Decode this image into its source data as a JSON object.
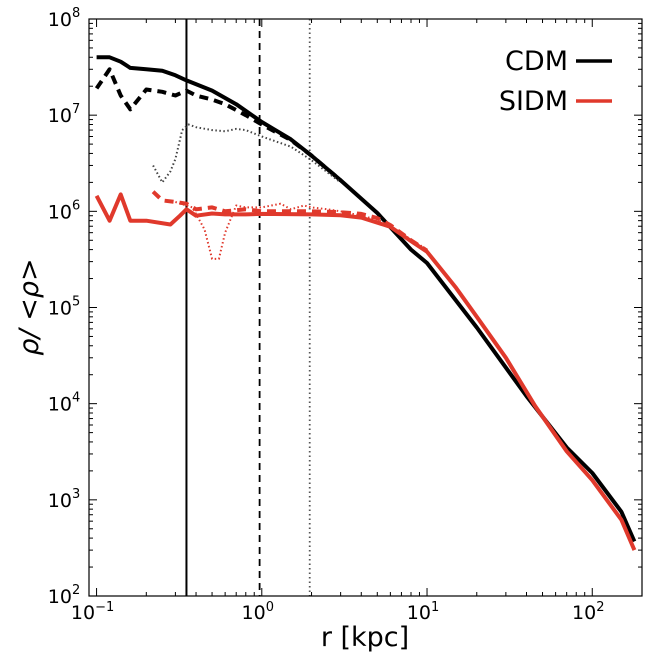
{
  "chart_data": {
    "type": "line",
    "xlabel": "r [kpc]",
    "ylabel": "ρ/ <ρ>",
    "xscale": "log",
    "yscale": "log",
    "xlim": [
      0.09,
      200
    ],
    "ylim": [
      100,
      100000000
    ],
    "x_ticks": [
      {
        "base": "10",
        "exp": "−1",
        "value": 0.1
      },
      {
        "base": "10",
        "exp": "0",
        "value": 1
      },
      {
        "base": "10",
        "exp": "1",
        "value": 10
      },
      {
        "base": "10",
        "exp": "2",
        "value": 100
      }
    ],
    "y_ticks": [
      {
        "base": "10",
        "exp": "2",
        "value": 100
      },
      {
        "base": "10",
        "exp": "3",
        "value": 1000
      },
      {
        "base": "10",
        "exp": "4",
        "value": 10000
      },
      {
        "base": "10",
        "exp": "5",
        "value": 100000
      },
      {
        "base": "10",
        "exp": "6",
        "value": 1000000
      },
      {
        "base": "10",
        "exp": "7",
        "value": 10000000
      },
      {
        "base": "10",
        "exp": "8",
        "value": 100000000
      }
    ],
    "legend": [
      {
        "label": "CDM",
        "color": "#000000"
      },
      {
        "label": "SIDM",
        "color": "#e0392c"
      }
    ],
    "legend_position": "top-right",
    "vertical_lines": [
      {
        "x": 0.35,
        "style": "solid",
        "color": "#000000"
      },
      {
        "x": 0.97,
        "style": "dashed",
        "color": "#000000"
      },
      {
        "x": 1.95,
        "style": "dotted",
        "color": "#555555"
      }
    ],
    "series": [
      {
        "name": "CDM",
        "model": "CDM",
        "style": "solid",
        "color": "#000000",
        "x": [
          0.1,
          0.12,
          0.14,
          0.16,
          0.2,
          0.25,
          0.3,
          0.35,
          0.5,
          0.7,
          1.0,
          1.5,
          2.0,
          3.0,
          5.0,
          8.0,
          10,
          20,
          40,
          70,
          100,
          150,
          180
        ],
        "y": [
          40000000,
          40000000,
          36000000,
          31000000,
          30000000,
          29000000,
          26000000,
          23000000,
          18000000,
          13000000,
          8500000,
          5600000,
          3800000,
          2100000,
          960000,
          400000,
          290000,
          62000,
          12000,
          3500,
          1900,
          750,
          370
        ]
      },
      {
        "name": "CDM",
        "model": "CDM",
        "style": "dashed",
        "color": "#000000",
        "x": [
          0.1,
          0.12,
          0.14,
          0.16,
          0.2,
          0.25,
          0.3,
          0.35,
          0.4,
          0.5,
          0.6,
          0.8,
          1.0,
          1.5,
          2.0,
          3.0
        ],
        "y": [
          19000000,
          30000000,
          16000000,
          11500000,
          18500000,
          17500000,
          16000000,
          18000000,
          16000000,
          14500000,
          13000000,
          10000000,
          8000000,
          5500000,
          3800000,
          2100000
        ]
      },
      {
        "name": "CDM",
        "model": "CDM",
        "style": "dotted",
        "color": "#444444",
        "x": [
          0.22,
          0.25,
          0.28,
          0.3,
          0.33,
          0.36,
          0.4,
          0.5,
          0.6,
          0.7,
          0.8,
          1.0,
          1.5,
          2.0,
          3.0
        ],
        "y": [
          3000000,
          2000000,
          2600000,
          3500000,
          7000000,
          8000000,
          7500000,
          7000000,
          6800000,
          7200000,
          7000000,
          6000000,
          4700000,
          3400000,
          2000000
        ]
      },
      {
        "name": "SIDM",
        "model": "SIDM",
        "style": "solid",
        "color": "#e0392c",
        "x": [
          0.1,
          0.12,
          0.14,
          0.16,
          0.2,
          0.28,
          0.32,
          0.35,
          0.4,
          0.5,
          0.6,
          0.8,
          1.0,
          2.0,
          3.0,
          4.0,
          6.0,
          8.0,
          10,
          15,
          20,
          30,
          45,
          70,
          100,
          150,
          180
        ],
        "y": [
          1450000,
          800000,
          1500000,
          800000,
          800000,
          730000,
          900000,
          1050000,
          900000,
          950000,
          930000,
          930000,
          940000,
          930000,
          910000,
          860000,
          690000,
          490000,
          380000,
          160000,
          80000,
          30000,
          9500,
          3200,
          1600,
          620,
          300
        ]
      },
      {
        "name": "SIDM",
        "model": "SIDM",
        "style": "dashed",
        "color": "#e0392c",
        "x": [
          0.22,
          0.25,
          0.3,
          0.35,
          0.4,
          0.5,
          0.6,
          0.8,
          1.0,
          1.5,
          2.0,
          3.0,
          4.0,
          5.0,
          6.0,
          8.0,
          10
        ],
        "y": [
          1600000,
          1300000,
          1250000,
          1200000,
          1050000,
          1100000,
          1000000,
          1050000,
          1000000,
          1000000,
          1000000,
          980000,
          940000,
          850000,
          720000,
          500000,
          390000
        ]
      },
      {
        "name": "SIDM",
        "model": "SIDM",
        "style": "dotted",
        "color": "#e0392c",
        "x": [
          0.3,
          0.38,
          0.45,
          0.5,
          0.55,
          0.6,
          0.7,
          0.8,
          1.0,
          1.3,
          1.5,
          1.8,
          2.0,
          2.5,
          3.0,
          4.0,
          5.0,
          6.0,
          8.0,
          10
        ],
        "y": [
          1250000,
          1100000,
          650000,
          320000,
          320000,
          600000,
          1150000,
          1100000,
          1100000,
          1200000,
          1050000,
          1150000,
          1100000,
          1050000,
          1000000,
          900000,
          820000,
          700000,
          510000,
          400000
        ]
      }
    ]
  }
}
